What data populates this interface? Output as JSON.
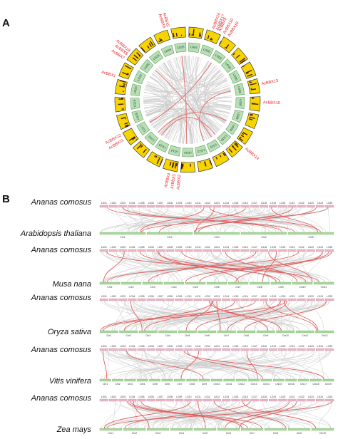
{
  "panel_a": {
    "label": "A",
    "chromosomes": [
      "LG01",
      "LG02",
      "LG03",
      "LG04",
      "LG05",
      "LG06",
      "LG07",
      "LG08",
      "LG09",
      "LG10",
      "LG11",
      "LG12",
      "LG13",
      "LG14",
      "LG15",
      "LG16",
      "LG17",
      "LG18",
      "LG19",
      "LG20",
      "LG21",
      "LG22",
      "LG23",
      "LG24",
      "LG25"
    ],
    "genes": [
      "AcBBX1",
      "AcBBX2",
      "AcBBX3",
      "AcBBX4",
      "AcBBX5",
      "AcBBX6",
      "AcBBX7",
      "AcBBX8",
      "AcBBX9",
      "AcBBX10",
      "AcBBX11",
      "AcBBX12",
      "AcBBX13",
      "AcBBX14",
      "AcBBX15",
      "AcBBX16",
      "AcBBX17",
      "AcBBX18",
      "AcBBX19"
    ],
    "gene_color": "#e0202a",
    "box_fill": "#b9e0b5",
    "box_stroke": "#5aa05a",
    "heat_color": "#f5d400",
    "link_grey": "#c9c9c9",
    "link_red": "#e47a78"
  },
  "panel_b": {
    "label": "B",
    "top_track_color": "#e9b6c4",
    "bottom_track_color": "#a9d79c",
    "comparisons": [
      {
        "top": "Ananas comosus",
        "bottom": "Arabidopsis thaliana",
        "top_chrs": [
          "LG01",
          "LG02",
          "LG03",
          "LG04",
          "LG05",
          "LG06",
          "LG07",
          "LG08",
          "LG09",
          "LG10",
          "LG11",
          "LG12",
          "LG13",
          "LG14",
          "LG15",
          "LG16",
          "LG17",
          "LG18",
          "LG19",
          "LG20",
          "LG21",
          "LG22",
          "LG23",
          "LG24",
          "LG25"
        ],
        "bottom_chrs": [
          "Chr1",
          "Chr2",
          "Chr3",
          "Chr4",
          "Chr5"
        ]
      },
      {
        "top": "Ananas comosus",
        "bottom": "Musa nana",
        "top_chrs": [
          "LG01",
          "LG02",
          "LG03",
          "LG04",
          "LG05",
          "LG06",
          "LG07",
          "LG08",
          "LG09",
          "LG10",
          "LG11",
          "LG12",
          "LG13",
          "LG14",
          "LG15",
          "LG16",
          "LG17",
          "LG18",
          "LG19",
          "LG20",
          "LG21",
          "LG22",
          "LG23",
          "LG24",
          "LG25"
        ],
        "bottom_chrs": [
          "Chr1",
          "Chr2",
          "Chr3",
          "Chr4",
          "Chr5",
          "Chr6",
          "Chr7",
          "Chr8",
          "Chr9",
          "Chr10",
          "Chr11"
        ]
      },
      {
        "top": "Ananas comosus",
        "bottom": "Oryza sativa",
        "top_chrs": [
          "LG01",
          "LG02",
          "LG03",
          "LG04",
          "LG05",
          "LG06",
          "LG07",
          "LG08",
          "LG09",
          "LG10",
          "LG11",
          "LG12",
          "LG13",
          "LG14",
          "LG15",
          "LG16",
          "LG17",
          "LG18",
          "LG19",
          "LG20",
          "LG21",
          "LG22",
          "LG23",
          "LG24",
          "LG25"
        ],
        "bottom_chrs": [
          "Chr1",
          "Chr2",
          "Chr3",
          "Chr4",
          "Chr5",
          "Chr6",
          "Chr7",
          "Chr8",
          "Chr9",
          "Chr10",
          "Chr11",
          "Chr12"
        ]
      },
      {
        "top": "Ananas comosus",
        "bottom": "Vitis vinifera",
        "top_chrs": [
          "LG01",
          "LG02",
          "LG03",
          "LG04",
          "LG05",
          "LG06",
          "LG07",
          "LG08",
          "LG09",
          "LG10",
          "LG11",
          "LG12",
          "LG13",
          "LG14",
          "LG15",
          "LG16",
          "LG17",
          "LG18",
          "LG19",
          "LG20",
          "LG21",
          "LG22",
          "LG23",
          "LG24",
          "LG25"
        ],
        "bottom_chrs": [
          "Chr1",
          "Chr2",
          "Chr3",
          "Chr4",
          "Chr5",
          "Chr6",
          "Chr7",
          "Chr8",
          "Chr9",
          "Chr10",
          "Chr11",
          "Chr12",
          "Chr13",
          "Chr14",
          "Chr15",
          "Chr16",
          "Chr17",
          "Chr18",
          "Chr19"
        ]
      },
      {
        "top": "Ananas comosus",
        "bottom": "Zea mays",
        "top_chrs": [
          "LG01",
          "LG02",
          "LG03",
          "LG04",
          "LG05",
          "LG06",
          "LG07",
          "LG08",
          "LG09",
          "LG10",
          "LG11",
          "LG12",
          "LG13",
          "LG14",
          "LG15",
          "LG16",
          "LG17",
          "LG18",
          "LG19",
          "LG20",
          "LG21",
          "LG22",
          "LG23",
          "LG24",
          "LG25"
        ],
        "bottom_chrs": [
          "Chr1",
          "Chr2",
          "Chr3",
          "Chr4",
          "Chr5",
          "Chr6",
          "Chr7",
          "Chr8",
          "Chr9",
          "Chr10"
        ]
      }
    ]
  }
}
